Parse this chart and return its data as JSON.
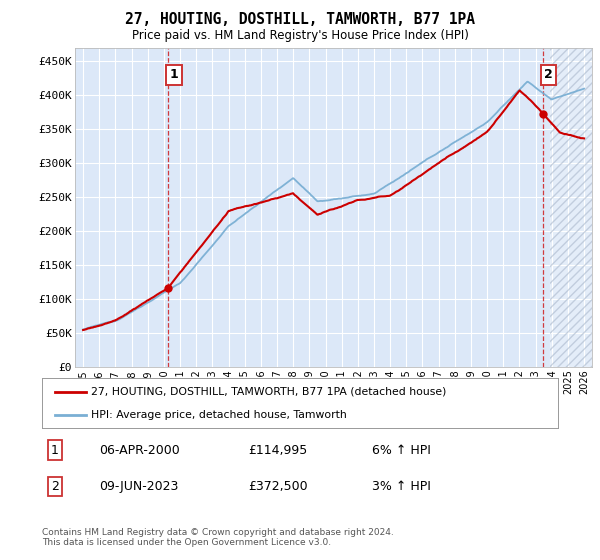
{
  "title": "27, HOUTING, DOSTHILL, TAMWORTH, B77 1PA",
  "subtitle": "Price paid vs. HM Land Registry's House Price Index (HPI)",
  "legend_line1": "27, HOUTING, DOSTHILL, TAMWORTH, B77 1PA (detached house)",
  "legend_line2": "HPI: Average price, detached house, Tamworth",
  "annotation1_date": "06-APR-2000",
  "annotation1_price": "£114,995",
  "annotation1_hpi": "6% ↑ HPI",
  "annotation2_date": "09-JUN-2023",
  "annotation2_price": "£372,500",
  "annotation2_hpi": "3% ↑ HPI",
  "footer": "Contains HM Land Registry data © Crown copyright and database right 2024.\nThis data is licensed under the Open Government Licence v3.0.",
  "ylim": [
    0,
    470000
  ],
  "yticks": [
    0,
    50000,
    100000,
    150000,
    200000,
    250000,
    300000,
    350000,
    400000,
    450000
  ],
  "ylabels": [
    "£0",
    "£50K",
    "£100K",
    "£150K",
    "£200K",
    "£250K",
    "£300K",
    "£350K",
    "£400K",
    "£450K"
  ],
  "bg_color": "#dce8f8",
  "hpi_color": "#7aafd4",
  "price_color": "#cc0000",
  "marker1_x_year": 2000.27,
  "marker2_x_year": 2023.44,
  "xmin": 1994.5,
  "xmax": 2026.5,
  "hatch_start": 2023.9
}
